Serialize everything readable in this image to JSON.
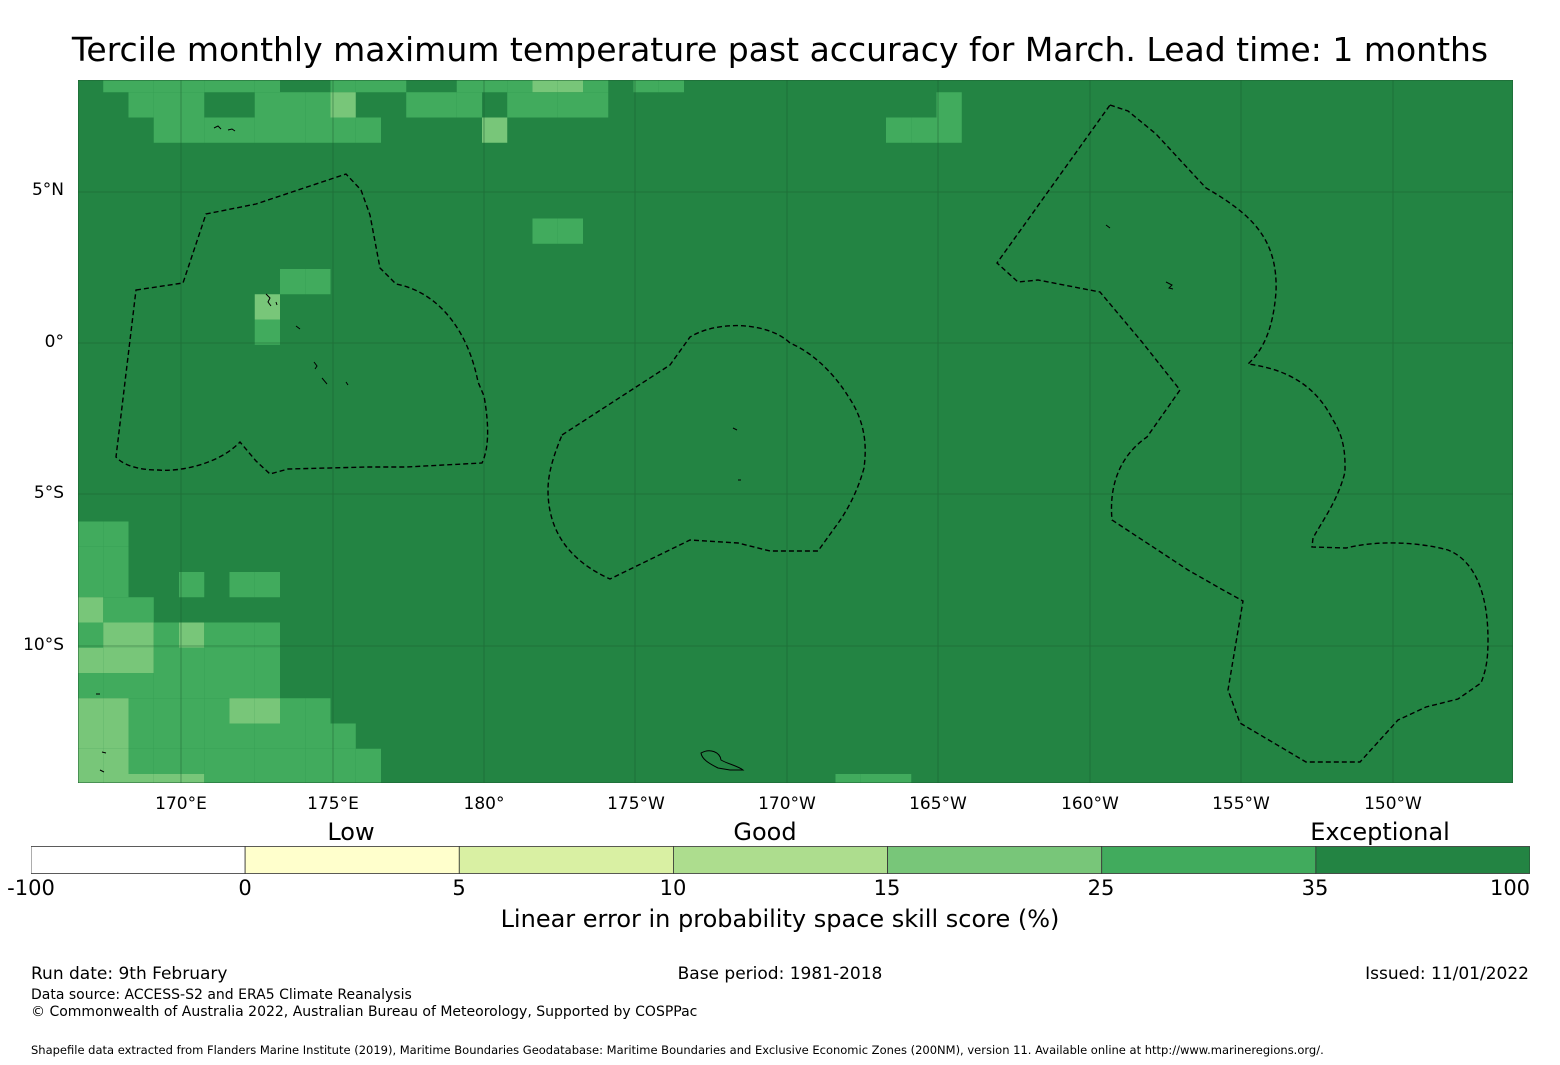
{
  "title": "Tercile monthly maximum temperature past accuracy for March. Lead time: 1 months",
  "map": {
    "lat_labels": [
      "5°N",
      "0°",
      "5°S",
      "10°S"
    ],
    "lon_labels": [
      "170°E",
      "175°E",
      "180°",
      "175°W",
      "170°W",
      "165°W",
      "160°W",
      "155°W",
      "150°W"
    ],
    "extent": {
      "lon_min_east": 166.6,
      "lon_max_east": 214.0,
      "lat_min": -14.7,
      "lat_max": 8.5
    },
    "colors": {
      "exceptional": "#238443",
      "very_good": "#41ab5d",
      "good": "#78c679",
      "ok": "#addd8e"
    }
  },
  "legend": {
    "categories": [
      "Low",
      "Good",
      "Exceptional"
    ],
    "bins": [
      {
        "from": "-100",
        "to": "0",
        "color": "#ffffff"
      },
      {
        "from": "0",
        "to": "5",
        "color": "#ffffcc"
      },
      {
        "from": "5",
        "to": "10",
        "color": "#d9f0a3"
      },
      {
        "from": "10",
        "to": "15",
        "color": "#addd8e"
      },
      {
        "from": "15",
        "to": "25",
        "color": "#78c679"
      },
      {
        "from": "25",
        "to": "35",
        "color": "#41ab5d"
      },
      {
        "from": "35",
        "to": "100",
        "color": "#238443"
      }
    ],
    "tick_labels": [
      "-100",
      "0",
      "5",
      "10",
      "15",
      "25",
      "35",
      "100"
    ],
    "axis_title": "Linear error in probability space skill score (%)"
  },
  "footer": {
    "run_date": "Run date: 9th February",
    "base_period": "Base period: 1981-2018",
    "issued": "Issued: 11/01/2022",
    "data_source": "Data source: ACCESS-S2 and ERA5 Climate Reanalysis",
    "copyright": "© Commonwealth of Australia 2022, Australian Bureau of Meteorology, Supported by COSPPac",
    "shapefile": "Shapefile data extracted from Flanders Marine Institute (2019), Maritime Boundaries Geodatabase: Maritime Boundaries and Exclusive Economic Zones (200NM), version 11. Available online at http://www.marineregions.org/."
  }
}
